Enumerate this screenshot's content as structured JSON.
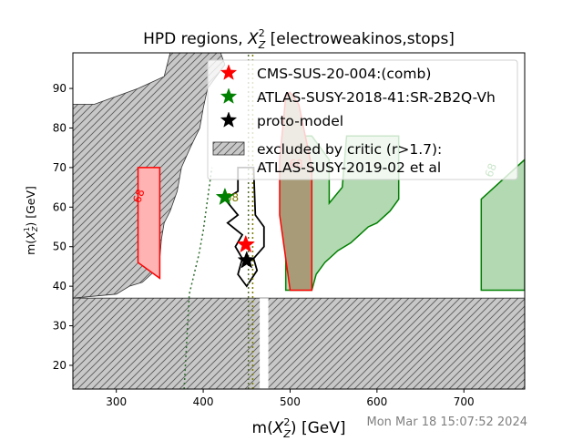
{
  "chart_data": {
    "type": "area",
    "title": "HPD regions, X_Z^2 [electroweakinos,stops]",
    "title_parts": {
      "pre": "HPD regions, ",
      "sym": "X",
      "sup": "2",
      "sub": "Z",
      "post": " [electroweakinos,stops]"
    },
    "xlabel_parts": {
      "pre": "m(",
      "sym": "X",
      "sup": "2",
      "sub": "Z",
      "post": ") [GeV]"
    },
    "ylabel_parts": {
      "pre": "m(",
      "sym": "X",
      "sup": "1",
      "sub": "Z",
      "post": ") [GeV]"
    },
    "xlim": [
      250,
      770
    ],
    "ylim": [
      14,
      99
    ],
    "xticks": [
      300,
      400,
      500,
      600,
      700
    ],
    "yticks": [
      20,
      30,
      40,
      50,
      60,
      70,
      80,
      90
    ],
    "grid": false,
    "legend_position": "top-right",
    "timestamp": "Mon Mar 18 15:07:52 2024",
    "colors": {
      "cms": "#ff0000",
      "atlas": "#008000",
      "proto": "#000000",
      "excluded_fill": "#c8c8c8",
      "cms_fill": "#ffb3b3",
      "atlas_fill": "#b3d9b3",
      "overlap_fill": "#a89c78"
    },
    "series": [
      {
        "name": "CMS-SUS-20-004:(comb)",
        "marker": "star",
        "color": "#ff0000"
      },
      {
        "name": "ATLAS-SUSY-2018-41:SR-2B2Q-Vh",
        "marker": "star",
        "color": "#008000"
      },
      {
        "name": "proto-model",
        "marker": "star",
        "color": "#000000"
      },
      {
        "name": "excluded by critic (r>1.7):\nATLAS-SUSY-2019-02 et al",
        "marker": "hatch",
        "color": "#c8c8c8"
      }
    ],
    "markers": [
      {
        "series": "CMS-SUS-20-004:(comb)",
        "x": 449,
        "y": 50.5
      },
      {
        "series": "ATLAS-SUSY-2018-41:SR-2B2Q-Vh",
        "x": 425,
        "y": 62.5
      },
      {
        "series": "proto-model",
        "x": 450,
        "y": 46.5
      }
    ],
    "regions": {
      "excluded_band": [
        [
          250,
          14
        ],
        [
          770,
          14
        ],
        [
          770,
          37
        ],
        [
          250,
          37
        ]
      ],
      "excluded_left": [
        [
          250,
          37
        ],
        [
          250,
          86
        ],
        [
          275,
          86
        ],
        [
          300,
          88
        ],
        [
          325,
          90
        ],
        [
          355,
          93
        ],
        [
          362,
          99
        ],
        [
          420,
          99
        ],
        [
          425,
          96
        ],
        [
          415,
          93
        ],
        [
          405,
          90
        ],
        [
          400,
          85
        ],
        [
          396,
          80
        ],
        [
          385,
          75
        ],
        [
          375,
          70
        ],
        [
          370,
          64
        ],
        [
          362,
          59
        ],
        [
          355,
          56
        ],
        [
          352,
          52
        ],
        [
          350,
          47
        ],
        [
          345,
          44
        ],
        [
          330,
          41
        ],
        [
          315,
          40
        ],
        [
          300,
          38
        ],
        [
          250,
          37
        ]
      ],
      "excluded_strip": [
        [
          465,
          37
        ],
        [
          465,
          14
        ],
        [
          475,
          14
        ],
        [
          475,
          37
        ]
      ],
      "cms_left": [
        [
          325,
          70
        ],
        [
          350,
          70
        ],
        [
          350,
          42
        ],
        [
          325,
          46
        ]
      ],
      "cms_wide": [
        [
          488,
          72
        ],
        [
          495,
          88
        ],
        [
          500,
          89
        ],
        [
          510,
          86
        ],
        [
          525,
          70
        ],
        [
          525,
          39
        ],
        [
          500,
          39
        ],
        [
          488,
          58
        ]
      ],
      "atlas_wide": [
        [
          495,
          39
        ],
        [
          495,
          78
        ],
        [
          525,
          78
        ],
        [
          545,
          72
        ],
        [
          545,
          61
        ],
        [
          560,
          65
        ],
        [
          565,
          78
        ],
        [
          625,
          78
        ],
        [
          625,
          62
        ],
        [
          615,
          59
        ],
        [
          600,
          56
        ],
        [
          590,
          55
        ],
        [
          580,
          53
        ],
        [
          570,
          51
        ],
        [
          555,
          49
        ],
        [
          540,
          46
        ],
        [
          530,
          43
        ],
        [
          525,
          39
        ]
      ],
      "atlas_right": [
        [
          720,
          39
        ],
        [
          720,
          62
        ],
        [
          770,
          72
        ],
        [
          770,
          39
        ]
      ],
      "proto_contour": [
        [
          440,
          70
        ],
        [
          458,
          70
        ],
        [
          460,
          58
        ],
        [
          470,
          55
        ],
        [
          470,
          50
        ],
        [
          458,
          47
        ],
        [
          462,
          44
        ],
        [
          450,
          40
        ],
        [
          440,
          43
        ],
        [
          445,
          47
        ],
        [
          437,
          50
        ],
        [
          445,
          53
        ],
        [
          428,
          56
        ],
        [
          440,
          58
        ],
        [
          425,
          62
        ],
        [
          440,
          64
        ],
        [
          440,
          70
        ]
      ],
      "dotted_lines": [
        {
          "color": "#2e6e2e",
          "x": [
            378,
            384,
            395,
            400,
            410
          ],
          "y": [
            14,
            38,
            48,
            54,
            70
          ]
        },
        {
          "color": "#556b2f",
          "x": [
            452,
            452,
            452
          ],
          "y": [
            14,
            60,
            99
          ]
        },
        {
          "color": "#7a7a00",
          "x": [
            457,
            457,
            457
          ],
          "y": [
            14,
            60,
            99
          ]
        }
      ]
    },
    "contour_labels": [
      {
        "text": "68",
        "x": 330,
        "y": 62.5,
        "color": "#ff0000",
        "rotation": -70
      },
      {
        "text": "68",
        "x": 507,
        "y": 70,
        "color": "#ff0000",
        "rotation": 0
      },
      {
        "text": "68",
        "x": 735,
        "y": 69,
        "color": "#008000",
        "rotation": -70
      },
      {
        "text": "68",
        "x": 433,
        "y": 61.5,
        "color": "#7a7a00",
        "rotation": 0
      }
    ]
  }
}
